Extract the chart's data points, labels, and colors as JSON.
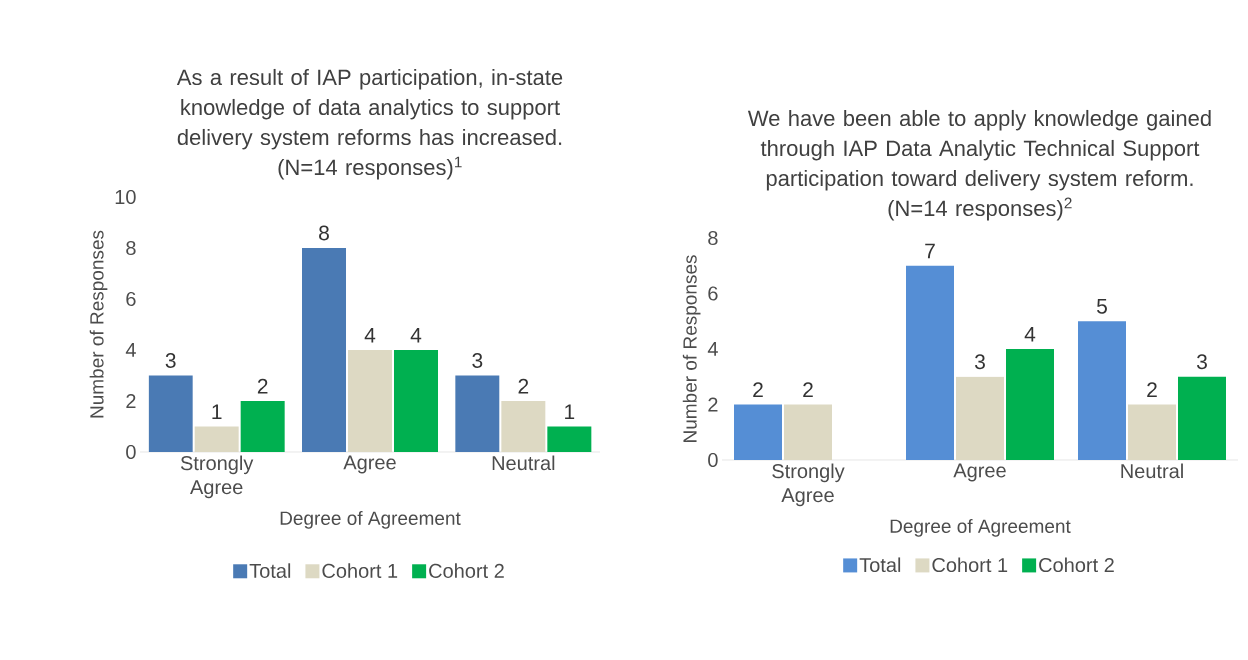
{
  "chart_data": [
    {
      "type": "bar",
      "title": "As a result of IAP participation, in-state knowledge of data analytics to support delivery system reforms has increased.",
      "subtitle": "(N=14 responses)$^{1}$",
      "xlabel": "Degree of Agreement",
      "ylabel": "Number of Responses",
      "categories": [
        "Strongly Agree",
        "Agree",
        "Neutral"
      ],
      "series": [
        {
          "name": "Total",
          "color": "#4a7ab4",
          "values": [
            3,
            8,
            3
          ]
        },
        {
          "name": "Cohort 1",
          "color": "#ddd9c3",
          "values": [
            1,
            4,
            2
          ]
        },
        {
          "name": "Cohort 2",
          "color": "#00b050",
          "values": [
            2,
            4,
            1
          ]
        }
      ],
      "ylim": [
        0,
        10
      ],
      "yticks": [
        0,
        2,
        4,
        6,
        8,
        10
      ],
      "data_labels": true,
      "legend": "bottom"
    },
    {
      "type": "bar",
      "title": "We have been able to apply knowledge gained through IAP Data Analytic Technical Support participation toward delivery system reform.",
      "subtitle": "(N=14 responses)$^{2}$",
      "xlabel": "Degree of Agreement",
      "ylabel": "Number of Responses",
      "categories": [
        "Strongly Agree",
        "Agree",
        "Neutral"
      ],
      "series": [
        {
          "name": "Total",
          "color": "#558ed5",
          "values": [
            2,
            7,
            5
          ]
        },
        {
          "name": "Cohort 1",
          "color": "#ddd9c3",
          "values": [
            2,
            3,
            2
          ]
        },
        {
          "name": "Cohort 2",
          "color": "#00b050",
          "values": [
            null,
            4,
            3
          ]
        }
      ],
      "ylim": [
        0,
        8
      ],
      "yticks": [
        0,
        2,
        4,
        6,
        8
      ],
      "data_labels": true,
      "legend": "bottom"
    }
  ]
}
